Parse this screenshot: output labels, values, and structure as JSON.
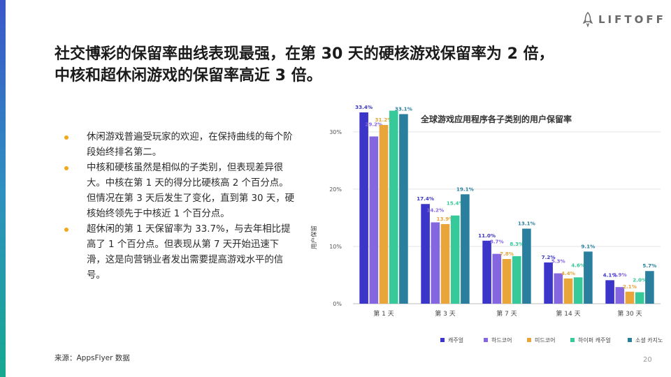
{
  "logo": {
    "text": "LIFTOFF"
  },
  "headline": {
    "line1": "社交博彩的保留率曲线表现最强，在第 30 天的硬核游戏保留率为 2 倍，",
    "line2": "中核和超休闲游戏的保留率高近 3 倍。"
  },
  "bullets": [
    "休闲游戏普遍受玩家的欢迎，在保持曲线的每个阶段始终排名第二。",
    "中核和硬核虽然是相似的子类别，但表现差异很大。中核在第 1 天的得分比硬核高 2 个百分点。但情况在第 3 天后发生了变化，直到第 30 天，硬核始终领先于中核近 1 个百分点。",
    "超休闲的第 1 天保留率为 33.7%，与去年相比提高了 1 个百分点。但表现从第 7 天开始迅速下滑，这是向营销业者发出需要提高游戏水平的信号。"
  ],
  "colors": {
    "accent_bullet": "#f2a81b"
  },
  "source": "来源：AppsFlyer 数据",
  "page_number": "20",
  "chart_data": {
    "type": "bar",
    "title": "全球游戏应用程序各子类别的用户保留率",
    "ylabel": "用户保留",
    "xlabel": "",
    "ylim": [
      0,
      30
    ],
    "yticks": [
      0,
      10,
      20,
      30
    ],
    "ytick_labels": [
      "0%",
      "10%",
      "20%",
      "30%"
    ],
    "categories": [
      "第 1 天",
      "第 3 天",
      "第 7 天",
      "第 14 天",
      "第 30 天"
    ],
    "grid": true,
    "legend_position": "bottom",
    "series": [
      {
        "name": "캐주얼",
        "color": "#3b35c9",
        "values": [
          33.4,
          17.4,
          11.0,
          7.2,
          4.1
        ],
        "labels": [
          "33.4%",
          "17.4%",
          "11.0%",
          "7.2%",
          "4.1%"
        ]
      },
      {
        "name": "하드코어",
        "color": "#8467e0",
        "values": [
          29.2,
          14.2,
          8.7,
          5.3,
          2.9
        ],
        "labels": [
          "29.2%",
          "14.2%",
          "8.7%",
          "5.3%",
          "2.9%"
        ]
      },
      {
        "name": "미드코어",
        "color": "#e9a43a",
        "values": [
          31.2,
          13.9,
          7.8,
          4.4,
          2.1
        ],
        "labels": [
          "31.2%",
          "13.9%",
          "7.8%",
          "4.4%",
          "2.1%"
        ]
      },
      {
        "name": "하이퍼 캐주얼",
        "color": "#36c99a",
        "values": [
          33.7,
          15.4,
          8.3,
          4.6,
          2.0
        ],
        "labels": [
          "33.7%",
          "15.4%",
          "8.3%",
          "4.6%",
          "2.0%"
        ]
      },
      {
        "name": "소셜 카지노",
        "color": "#2b7f9e",
        "values": [
          33.1,
          19.1,
          13.1,
          9.1,
          5.7
        ],
        "labels": [
          "33.1%",
          "19.1%",
          "13.1%",
          "9.1%",
          "5.7%"
        ]
      }
    ]
  }
}
